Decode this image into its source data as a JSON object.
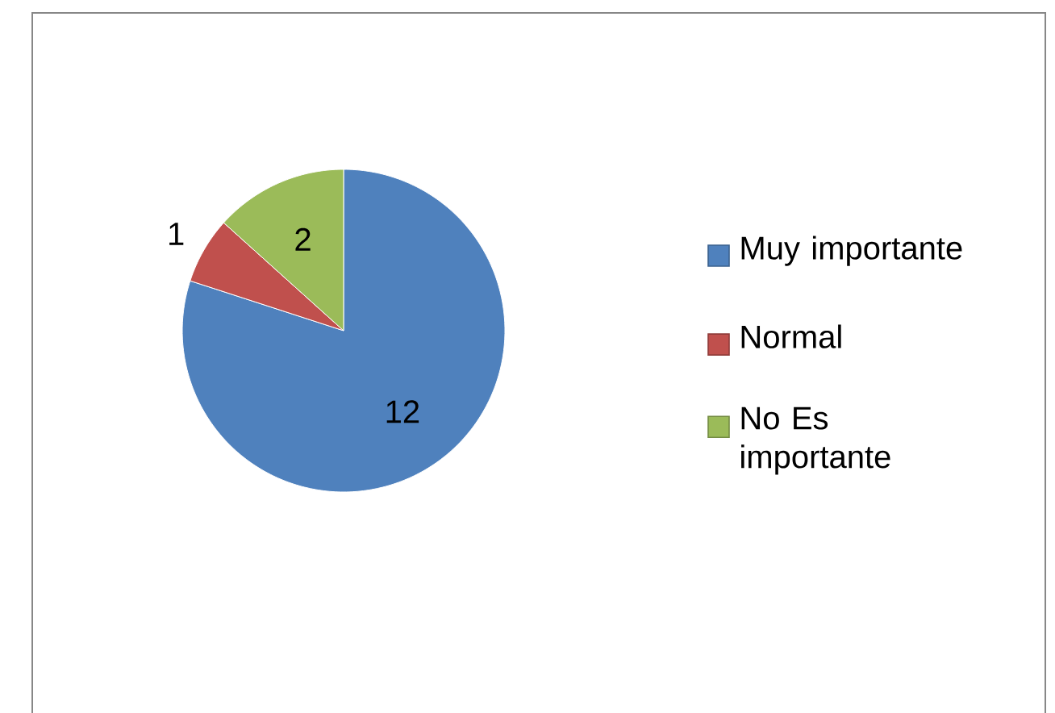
{
  "chart_data": {
    "type": "pie",
    "categories": [
      "Muy importante",
      "Normal",
      "No Es importante"
    ],
    "values": [
      12,
      1,
      2
    ],
    "colors": [
      "#4f81bd",
      "#c0504d",
      "#9bbb59"
    ],
    "data_labels": true,
    "legend": "right"
  }
}
